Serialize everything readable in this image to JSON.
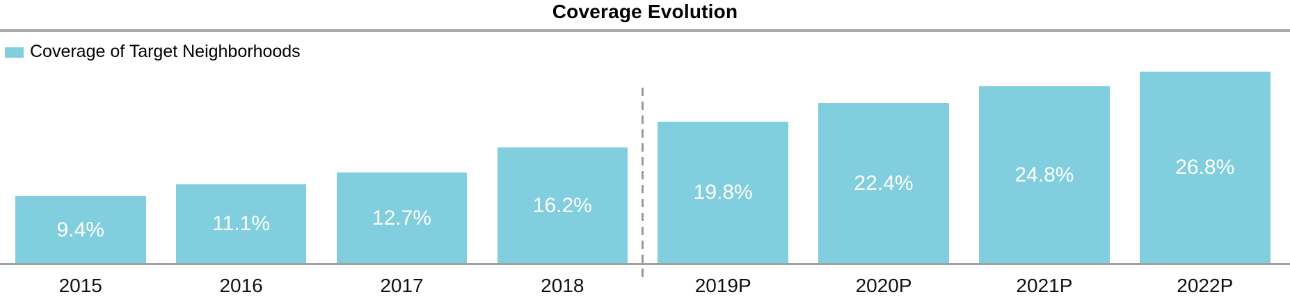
{
  "title": "Coverage Evolution",
  "legend": {
    "label": "Coverage of Target Neighborhoods"
  },
  "colors": {
    "bar": "#81CEDE",
    "title_text": "#000000",
    "divider": "#A9A9A9",
    "axis_line": "#A0A0A0",
    "separator": "#999999",
    "value_label": "#FFFFFF",
    "axis_label": "#111111"
  },
  "chart_data": {
    "type": "bar",
    "title": "Coverage Evolution",
    "categories": [
      "2015",
      "2016",
      "2017",
      "2018",
      "2019P",
      "2020P",
      "2021P",
      "2022P"
    ],
    "series": [
      {
        "name": "Coverage of Target Neighborhoods",
        "values": [
          9.4,
          11.1,
          12.7,
          16.2,
          19.8,
          22.4,
          24.8,
          26.8
        ]
      }
    ],
    "value_labels": [
      "9.4%",
      "11.1%",
      "12.7%",
      "16.2%",
      "19.8%",
      "22.4%",
      "24.8%",
      "26.8%"
    ],
    "unit": "%",
    "ylim": [
      0,
      32
    ],
    "grid": false,
    "y_axis_visible": false,
    "legend_position": "top-left",
    "separator": {
      "after_category": "2018",
      "style": "dashed",
      "meaning": "actual vs projected"
    }
  }
}
